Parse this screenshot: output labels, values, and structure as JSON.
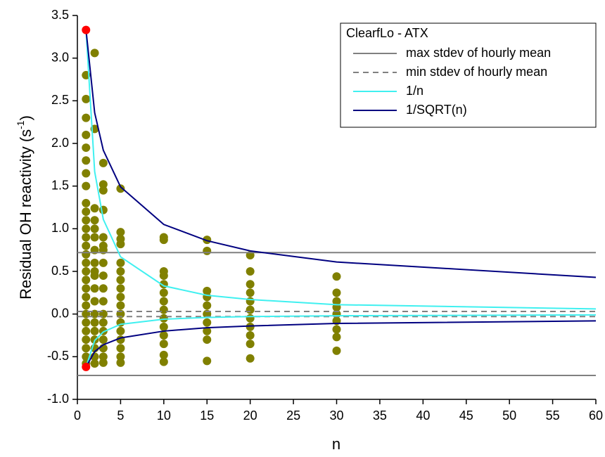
{
  "chart_data": {
    "type": "scatter",
    "xlabel": "n",
    "ylabel": [
      "Residual OH reactivity (s",
      "-1",
      ")"
    ],
    "xlim": [
      0,
      60
    ],
    "ylim": [
      -1.0,
      3.5
    ],
    "xticks": [
      0,
      5,
      10,
      15,
      20,
      25,
      30,
      35,
      40,
      45,
      50,
      55,
      60
    ],
    "yticks": [
      {
        "value": -1.0,
        "label": "-1.0"
      },
      -0.5,
      {
        "value": 0,
        "label": "0.0"
      },
      0.5,
      {
        "value": 1.0,
        "label": "1.0"
      },
      1.5,
      {
        "value": 2.0,
        "label": "2.0"
      },
      2.5,
      {
        "value": 3.0,
        "label": "3.0"
      },
      3.5
    ],
    "legend_title": "ClearfLo - ATX",
    "legend_position": "upper right",
    "series": [
      {
        "kind": "scatter",
        "color": "#808000",
        "x": [
          1,
          1,
          1,
          1,
          1,
          1,
          1,
          1,
          1,
          1,
          1,
          1,
          1,
          1,
          1,
          1,
          1,
          1,
          1,
          1,
          1,
          1,
          1,
          1,
          1,
          1,
          1,
          1,
          2,
          2,
          2,
          2,
          2,
          2,
          2,
          2,
          2,
          2,
          2,
          2,
          2,
          2,
          2,
          2,
          2,
          2,
          2,
          3,
          3,
          3,
          3,
          3,
          3,
          3,
          3,
          3,
          3,
          3,
          3,
          3,
          3,
          3,
          3,
          3,
          3,
          5,
          5,
          5,
          5,
          5,
          5,
          5,
          5,
          5,
          5,
          5,
          5,
          5,
          5,
          5,
          5,
          5,
          10,
          10,
          10,
          10,
          10,
          10,
          10,
          10,
          10,
          10,
          10,
          10,
          10,
          10,
          15,
          15,
          15,
          15,
          15,
          15,
          15,
          15,
          15,
          15,
          20,
          20,
          20,
          20,
          20,
          20,
          20,
          20,
          20,
          20,
          20,
          30,
          30,
          30,
          30,
          30,
          30,
          30,
          30,
          30
        ],
        "values": [
          -0.58,
          -0.5,
          -0.4,
          -0.3,
          -0.2,
          -0.1,
          0,
          0.1,
          0.2,
          0.3,
          0.4,
          0.5,
          0.6,
          0.7,
          0.8,
          0.9,
          1.0,
          1.1,
          1.2,
          1.3,
          1.5,
          1.65,
          1.8,
          1.95,
          2.1,
          2.3,
          2.52,
          2.8,
          3.06,
          2.17,
          1.24,
          1.1,
          0.9,
          0.75,
          0.6,
          0.45,
          0.3,
          0.15,
          0,
          -0.1,
          -0.2,
          -0.3,
          -0.4,
          -0.5,
          -0.58,
          0.5,
          1.0,
          1.77,
          1.52,
          1.45,
          1.22,
          0.9,
          0.75,
          0.6,
          0.45,
          0.3,
          0.15,
          0,
          -0.1,
          -0.2,
          -0.3,
          -0.4,
          -0.5,
          -0.57,
          0.8,
          1.47,
          0.96,
          0.88,
          0.82,
          0.6,
          0.5,
          0.4,
          0.3,
          0.2,
          0.1,
          0,
          -0.1,
          -0.2,
          -0.3,
          -0.4,
          -0.5,
          -0.57,
          0.9,
          0.87,
          0.5,
          0.45,
          0.35,
          0.25,
          0.15,
          0.05,
          -0.05,
          -0.15,
          -0.25,
          -0.35,
          -0.48,
          -0.56,
          0.87,
          0.74,
          0.27,
          0.2,
          0.1,
          0,
          -0.1,
          -0.2,
          -0.3,
          -0.55,
          0.69,
          0.5,
          0.35,
          0.25,
          0.15,
          0.05,
          -0.05,
          -0.15,
          -0.25,
          -0.35,
          -0.52,
          0.44,
          0.25,
          0.15,
          0.08,
          0,
          -0.08,
          -0.18,
          -0.27,
          -0.43
        ]
      },
      {
        "kind": "line",
        "name": "max stdev of hourly mean",
        "color": "#808080",
        "dashed": false,
        "x": [
          0,
          60,
          60,
          0,
          60
        ],
        "values": [
          0.72,
          0.72,
          null,
          -0.72,
          -0.72
        ]
      },
      {
        "kind": "line",
        "name": "min stdev of hourly mean",
        "color": "#808080",
        "dashed": true,
        "x": [
          0,
          60,
          60,
          0,
          60
        ],
        "values": [
          0.03,
          0.03,
          null,
          -0.03,
          -0.03
        ]
      },
      {
        "kind": "line",
        "name": "1/n",
        "color": "#40f0f0",
        "dashed": false,
        "x": [
          1,
          2,
          3,
          5,
          10,
          15,
          20,
          30,
          60,
          60,
          1,
          2,
          3,
          5,
          10,
          15,
          20,
          30,
          60
        ],
        "values": [
          3.33,
          1.67,
          1.11,
          0.67,
          0.33,
          0.22,
          0.17,
          0.11,
          0.06,
          null,
          -0.62,
          -0.31,
          -0.21,
          -0.12,
          -0.06,
          -0.04,
          -0.03,
          -0.02,
          -0.01
        ]
      },
      {
        "kind": "line",
        "name": "1/SQRT(n)",
        "color": "#000080",
        "dashed": false,
        "x": [
          1,
          2,
          3,
          5,
          10,
          15,
          20,
          30,
          60,
          60,
          1,
          2,
          3,
          5,
          10,
          15,
          20,
          30,
          60
        ],
        "values": [
          3.33,
          2.36,
          1.92,
          1.49,
          1.05,
          0.86,
          0.74,
          0.61,
          0.43,
          null,
          -0.62,
          -0.44,
          -0.36,
          -0.28,
          -0.2,
          -0.16,
          -0.14,
          -0.11,
          -0.08
        ]
      },
      {
        "kind": "scatter",
        "color": "#ff0000",
        "x": [
          1,
          1
        ],
        "values": [
          3.33,
          -0.62
        ]
      }
    ]
  }
}
